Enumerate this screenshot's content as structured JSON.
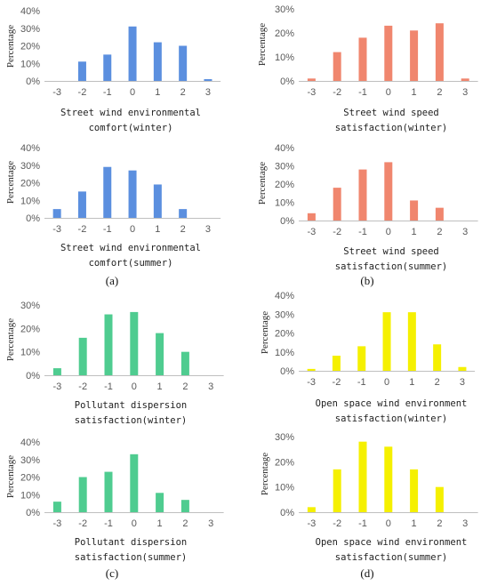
{
  "panels": [
    {
      "letter": "(a)"
    },
    {
      "letter": "(b)"
    },
    {
      "letter": "(c)"
    },
    {
      "letter": "(d)"
    }
  ],
  "chart_data": [
    {
      "type": "bar",
      "ylabel": "Percentage",
      "xlabel_lines": [
        "Street wind environmental",
        "comfort(winter)"
      ],
      "categories": [
        "-3",
        "-2",
        "-1",
        "0",
        "1",
        "2",
        "3"
      ],
      "values": [
        0,
        11,
        15,
        31,
        22,
        20,
        1
      ],
      "y_ticks": [
        "0%",
        "10%",
        "20%",
        "30%",
        "40%"
      ],
      "ylim": [
        0,
        40
      ],
      "color": "#5b8fdf"
    },
    {
      "type": "bar",
      "ylabel": "Percentage",
      "xlabel_lines": [
        "Street wind speed",
        "satisfaction(winter)"
      ],
      "categories": [
        "-3",
        "-2",
        "-1",
        "0",
        "1",
        "2",
        "3"
      ],
      "values": [
        1,
        12,
        18,
        23,
        21,
        24,
        1
      ],
      "y_ticks": [
        "0%",
        "10%",
        "20%",
        "30%"
      ],
      "ylim": [
        0,
        30
      ],
      "color": "#f0866e"
    },
    {
      "type": "bar",
      "ylabel": "Percentage",
      "xlabel_lines": [
        "Street wind environmental",
        "comfort(summer)"
      ],
      "categories": [
        "-3",
        "-2",
        "-1",
        "0",
        "1",
        "2",
        "3"
      ],
      "values": [
        5,
        15,
        29,
        27,
        19,
        5,
        0
      ],
      "y_ticks": [
        "0%",
        "10%",
        "20%",
        "30%",
        "40%"
      ],
      "ylim": [
        0,
        40
      ],
      "color": "#5b8fdf"
    },
    {
      "type": "bar",
      "ylabel": "Percentage",
      "xlabel_lines": [
        "Street wind speed",
        "satisfaction(summer)"
      ],
      "categories": [
        "-3",
        "-2",
        "-1",
        "0",
        "1",
        "2",
        "3"
      ],
      "values": [
        4,
        18,
        28,
        32,
        11,
        7,
        0
      ],
      "y_ticks": [
        "0%",
        "10%",
        "20%",
        "30%",
        "40%"
      ],
      "ylim": [
        0,
        40
      ],
      "color": "#f0866e"
    },
    {
      "type": "bar",
      "ylabel": "Percentage",
      "xlabel_lines": [
        "Pollutant dispersion",
        "satisfaction(winter)"
      ],
      "categories": [
        "-3",
        "-2",
        "-1",
        "0",
        "1",
        "2",
        "3"
      ],
      "values": [
        3,
        16,
        26,
        27,
        18,
        10,
        0
      ],
      "y_ticks": [
        "0%",
        "10%",
        "20%",
        "30%"
      ],
      "ylim": [
        0,
        30
      ],
      "color": "#4fcc90"
    },
    {
      "type": "bar",
      "ylabel": "Percentage",
      "xlabel_lines": [
        "Open space wind environment",
        "satisfaction(winter)"
      ],
      "categories": [
        "-3",
        "-2",
        "-1",
        "0",
        "1",
        "2",
        "3"
      ],
      "values": [
        1,
        8,
        13,
        31,
        31,
        14,
        2
      ],
      "y_ticks": [
        "0%",
        "10%",
        "20%",
        "30%",
        "40%"
      ],
      "ylim": [
        0,
        40
      ],
      "color": "#f5f000"
    },
    {
      "type": "bar",
      "ylabel": "Percentage",
      "xlabel_lines": [
        "Pollutant dispersion",
        "satisfaction(summer)"
      ],
      "categories": [
        "-3",
        "-2",
        "-1",
        "0",
        "1",
        "2",
        "3"
      ],
      "values": [
        6,
        20,
        23,
        33,
        11,
        7,
        0
      ],
      "y_ticks": [
        "0%",
        "10%",
        "20%",
        "30%",
        "40%"
      ],
      "ylim": [
        0,
        40
      ],
      "color": "#4fcc90"
    },
    {
      "type": "bar",
      "ylabel": "Percentage",
      "xlabel_lines": [
        "Open space wind environment",
        "satisfaction(summer)"
      ],
      "categories": [
        "-3",
        "-2",
        "-1",
        "0",
        "1",
        "2",
        "3"
      ],
      "values": [
        2,
        17,
        28,
        26,
        17,
        10,
        0
      ],
      "y_ticks": [
        "0%",
        "10%",
        "20%",
        "30%"
      ],
      "ylim": [
        0,
        30
      ],
      "color": "#f5f000"
    }
  ]
}
